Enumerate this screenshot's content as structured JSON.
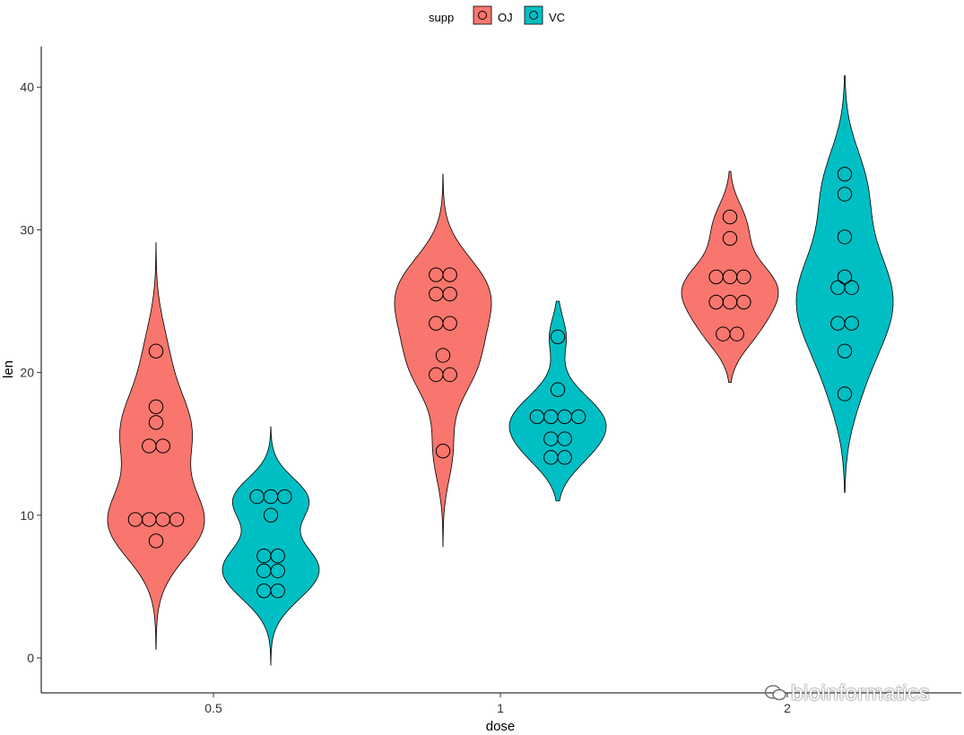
{
  "chart_data": {
    "type": "violin",
    "xlabel": "dose",
    "ylabel": "len",
    "ylim": [
      -2,
      43
    ],
    "yticks": [
      0,
      10,
      20,
      30,
      40
    ],
    "categories": [
      "0.5",
      "1",
      "2"
    ],
    "legend": {
      "title": "supp",
      "position": "top"
    },
    "series": [
      {
        "name": "OJ",
        "color": "#F8766D",
        "violin_range": [
          [
            0.6,
            29.1
          ],
          [
            7.8,
            33.9
          ],
          [
            19.3,
            34.1
          ]
        ],
        "points": [
          [
            15.2,
            21.5,
            17.6,
            9.7,
            14.5,
            10.0,
            8.2,
            9.4,
            16.5,
            9.7
          ],
          [
            19.7,
            23.3,
            23.6,
            26.4,
            20.0,
            25.2,
            25.8,
            21.2,
            14.5,
            27.3
          ],
          [
            25.5,
            26.4,
            22.4,
            24.5,
            24.8,
            30.9,
            26.4,
            27.3,
            29.4,
            23.0
          ]
        ]
      },
      {
        "name": "VC",
        "color": "#00BFC4",
        "violin_range": [
          [
            -0.5,
            16.2
          ],
          [
            11.0,
            25.0
          ],
          [
            11.6,
            40.8
          ]
        ],
        "points": [
          [
            4.2,
            11.5,
            7.3,
            5.8,
            6.4,
            10.0,
            11.2,
            11.2,
            5.2,
            7.0
          ],
          [
            16.5,
            16.5,
            15.2,
            17.3,
            22.5,
            17.3,
            13.6,
            14.5,
            18.8,
            15.5
          ],
          [
            23.6,
            18.5,
            33.9,
            25.5,
            26.4,
            32.5,
            26.7,
            21.5,
            23.3,
            29.5
          ]
        ]
      }
    ]
  },
  "watermark": {
    "text": "bioinformatics"
  }
}
